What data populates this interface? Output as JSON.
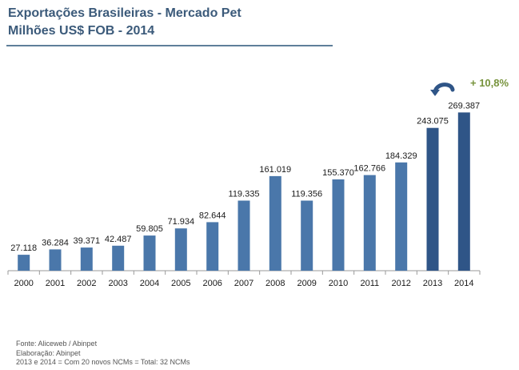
{
  "header": {
    "title_line1": "Exportações Brasileiras - Mercado Pet",
    "title_line2": "Milhões US$ FOB - 2014"
  },
  "annotation": {
    "growth_label": "+ 10,8%",
    "growth_icon": "curved-arrow-icon",
    "growth_color": "#77933c"
  },
  "colors": {
    "bar": "#4a77aa",
    "bar_highlight": "#2f5587",
    "title": "#3b5a7a"
  },
  "chart_data": {
    "type": "bar",
    "title": "Exportações Brasileiras - Mercado Pet",
    "subtitle": "Milhões US$ FOB - 2014",
    "categories": [
      "2000",
      "2001",
      "2002",
      "2003",
      "2004",
      "2005",
      "2006",
      "2007",
      "2008",
      "2009",
      "2010",
      "2011",
      "2012",
      "2013",
      "2014"
    ],
    "values": [
      27.118,
      36.284,
      39.371,
      42.487,
      59.805,
      71.934,
      82.644,
      119.335,
      161.019,
      119.356,
      155.37,
      162.766,
      184.329,
      243.075,
      269.387
    ],
    "data_labels": [
      "27.118",
      "36.284",
      "39.371",
      "42.487",
      "59.805",
      "71.934",
      "82.644",
      "119.335",
      "161.019",
      "119.356",
      "155.370",
      "162.766",
      "184.329",
      "243.075",
      "269.387"
    ],
    "highlighted_categories": [
      "2013",
      "2014"
    ],
    "xlabel": "",
    "ylabel": "",
    "ylim": [
      0,
      300
    ],
    "grid": false,
    "legend": "none"
  },
  "footnotes": {
    "source": "Fonte: Aliceweb / Abinpet",
    "elaboration": "Elaboração:  Abinpet",
    "note": "2013 e 2014 =  Com 20 novos NCMs =  Total: 32 NCMs"
  }
}
